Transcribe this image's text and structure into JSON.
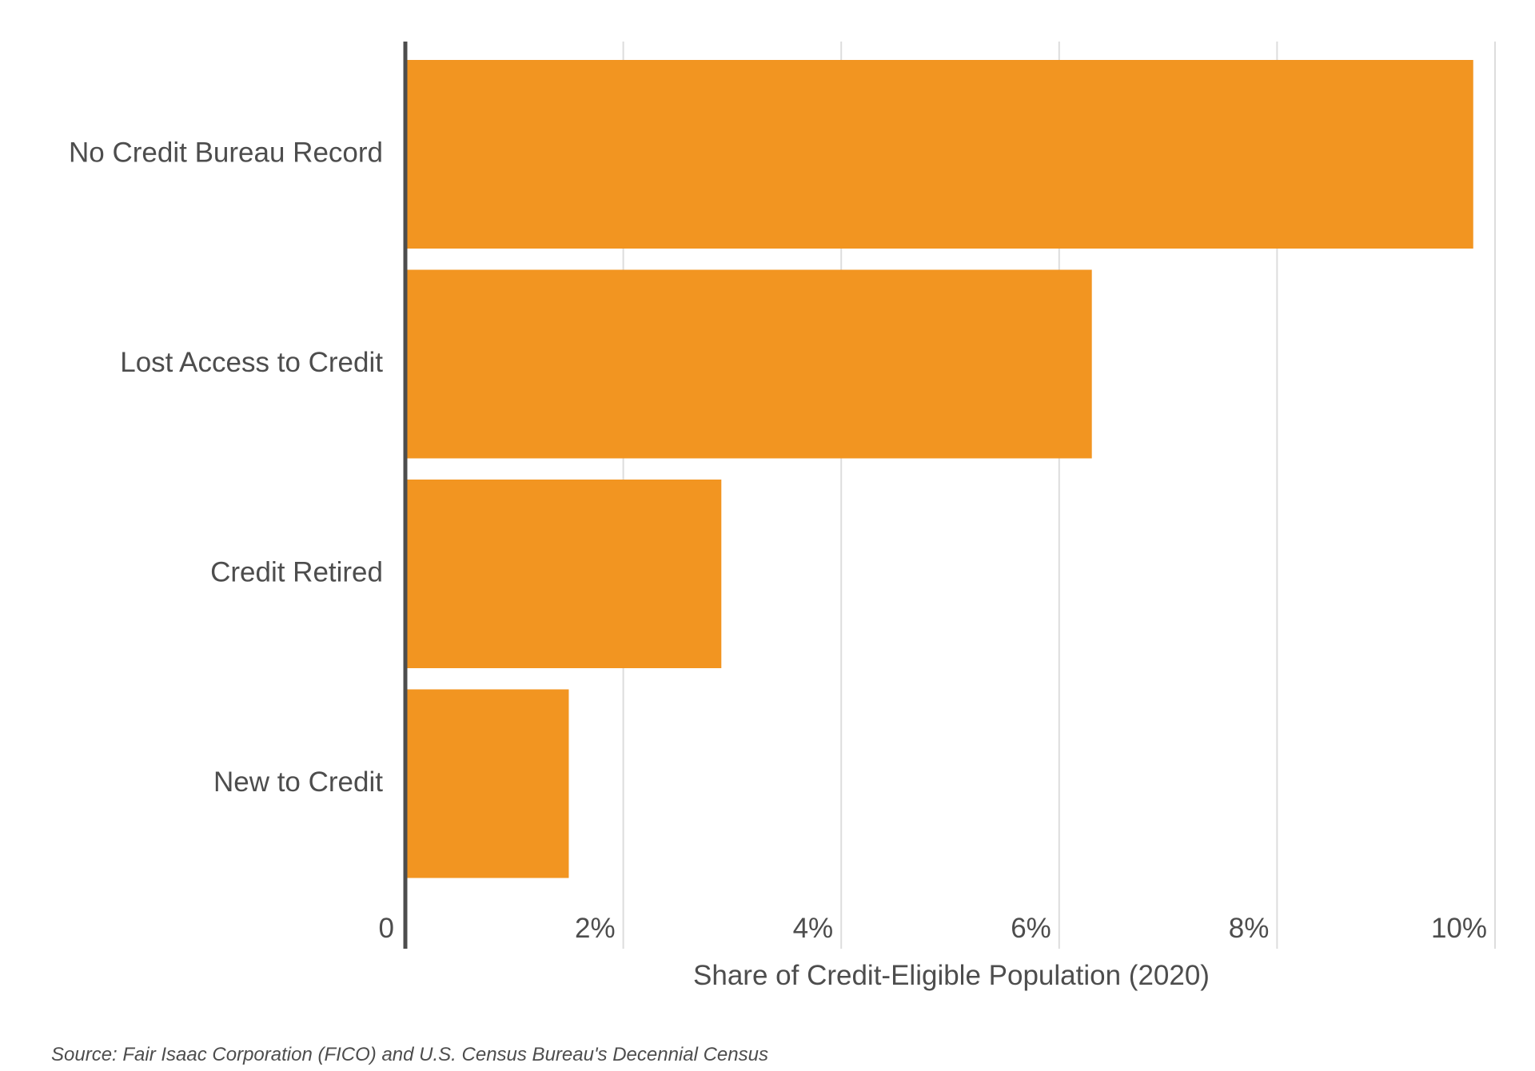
{
  "chart_data": {
    "type": "bar",
    "orientation": "horizontal",
    "categories": [
      "No Credit Bureau Record",
      "Lost Access to Credit",
      "Credit Retired",
      "New to Credit"
    ],
    "values": [
      9.8,
      6.3,
      2.9,
      1.5
    ],
    "xlabel": "Share of Credit-Eligible Population (2020)",
    "ylabel": "",
    "xlim": [
      0,
      10
    ],
    "ticks": [
      0,
      2,
      4,
      6,
      8,
      10
    ],
    "tick_labels": [
      "0",
      "2%",
      "4%",
      "6%",
      "8%",
      "10%"
    ],
    "grid": "vertical",
    "bar_color": "#f29521",
    "grid_color": "#dddddd",
    "axis_color": "#4d4d4d",
    "text_color": "#4d4d4d"
  },
  "source": "Source: Fair Isaac Corporation (FICO) and U.S. Census Bureau's Decennial Census"
}
